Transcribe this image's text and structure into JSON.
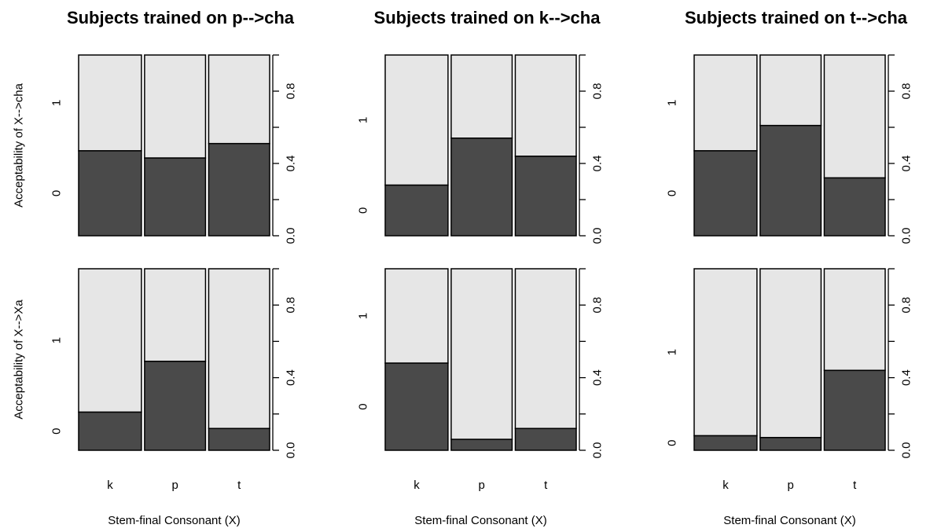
{
  "figure": {
    "xlabel": "Stem-final Consonant (X)",
    "row_labels": [
      "Acceptability of X-->cha",
      "Acceptability of X-->Xa"
    ],
    "colors": {
      "accepted": "#4a4a4a",
      "rejected": "#e6e6e6",
      "border": "#000000"
    }
  },
  "chart_data": [
    {
      "type": "bar",
      "stacked": true,
      "orientation": "mosaic",
      "title": "Subjects trained on p-->cha",
      "row": 0,
      "col": 0,
      "xlabel": "",
      "ylabel": "Acceptability of X-->cha",
      "categories": [
        "k",
        "p",
        "t"
      ],
      "left_ticks": [
        "0",
        "1"
      ],
      "right_ticks": [
        "0.0",
        "0.4",
        "0.8"
      ],
      "ylim": [
        0,
        1
      ],
      "width_fractions": [
        0.34,
        0.33,
        0.33
      ],
      "series": [
        {
          "name": "0",
          "values": [
            0.47,
            0.43,
            0.51
          ]
        },
        {
          "name": "1",
          "values": [
            0.53,
            0.57,
            0.49
          ]
        }
      ]
    },
    {
      "type": "bar",
      "stacked": true,
      "orientation": "mosaic",
      "title": "Subjects trained on k-->cha",
      "row": 0,
      "col": 1,
      "xlabel": "",
      "ylabel": "",
      "categories": [
        "k",
        "p",
        "t"
      ],
      "left_ticks": [
        "0",
        "1"
      ],
      "right_ticks": [
        "0.0",
        "0.4",
        "0.8"
      ],
      "ylim": [
        0,
        1
      ],
      "width_fractions": [
        0.34,
        0.33,
        0.33
      ],
      "series": [
        {
          "name": "0",
          "values": [
            0.28,
            0.54,
            0.44
          ]
        },
        {
          "name": "1",
          "values": [
            0.72,
            0.46,
            0.56
          ]
        }
      ]
    },
    {
      "type": "bar",
      "stacked": true,
      "orientation": "mosaic",
      "title": "Subjects trained on t-->cha",
      "row": 0,
      "col": 2,
      "xlabel": "",
      "ylabel": "",
      "categories": [
        "k",
        "p",
        "t"
      ],
      "left_ticks": [
        "0",
        "1"
      ],
      "right_ticks": [
        "0.0",
        "0.4",
        "0.8"
      ],
      "ylim": [
        0,
        1
      ],
      "width_fractions": [
        0.34,
        0.33,
        0.33
      ],
      "series": [
        {
          "name": "0",
          "values": [
            0.47,
            0.61,
            0.32
          ]
        },
        {
          "name": "1",
          "values": [
            0.53,
            0.39,
            0.68
          ]
        }
      ]
    },
    {
      "type": "bar",
      "stacked": true,
      "orientation": "mosaic",
      "title": "",
      "row": 1,
      "col": 0,
      "xlabel": "Stem-final Consonant (X)",
      "ylabel": "Acceptability of X-->Xa",
      "categories": [
        "k",
        "p",
        "t"
      ],
      "left_ticks": [
        "0",
        "1"
      ],
      "right_ticks": [
        "0.0",
        "0.4",
        "0.8"
      ],
      "ylim": [
        0,
        1
      ],
      "width_fractions": [
        0.34,
        0.33,
        0.33
      ],
      "series": [
        {
          "name": "0",
          "values": [
            0.21,
            0.49,
            0.12
          ]
        },
        {
          "name": "1",
          "values": [
            0.79,
            0.51,
            0.88
          ]
        }
      ]
    },
    {
      "type": "bar",
      "stacked": true,
      "orientation": "mosaic",
      "title": "",
      "row": 1,
      "col": 1,
      "xlabel": "Stem-final Consonant (X)",
      "ylabel": "",
      "categories": [
        "k",
        "p",
        "t"
      ],
      "left_ticks": [
        "0",
        "1"
      ],
      "right_ticks": [
        "0.0",
        "0.4",
        "0.8"
      ],
      "ylim": [
        0,
        1
      ],
      "width_fractions": [
        0.34,
        0.33,
        0.33
      ],
      "series": [
        {
          "name": "0",
          "values": [
            0.48,
            0.06,
            0.12
          ]
        },
        {
          "name": "1",
          "values": [
            0.52,
            0.94,
            0.88
          ]
        }
      ]
    },
    {
      "type": "bar",
      "stacked": true,
      "orientation": "mosaic",
      "title": "",
      "row": 1,
      "col": 2,
      "xlabel": "Stem-final Consonant (X)",
      "ylabel": "",
      "categories": [
        "k",
        "p",
        "t"
      ],
      "left_ticks": [
        "0",
        "1"
      ],
      "right_ticks": [
        "0.0",
        "0.4",
        "0.8"
      ],
      "ylim": [
        0,
        1
      ],
      "width_fractions": [
        0.34,
        0.33,
        0.33
      ],
      "series": [
        {
          "name": "0",
          "values": [
            0.08,
            0.07,
            0.44
          ]
        },
        {
          "name": "1",
          "values": [
            0.92,
            0.93,
            0.56
          ]
        }
      ]
    }
  ]
}
